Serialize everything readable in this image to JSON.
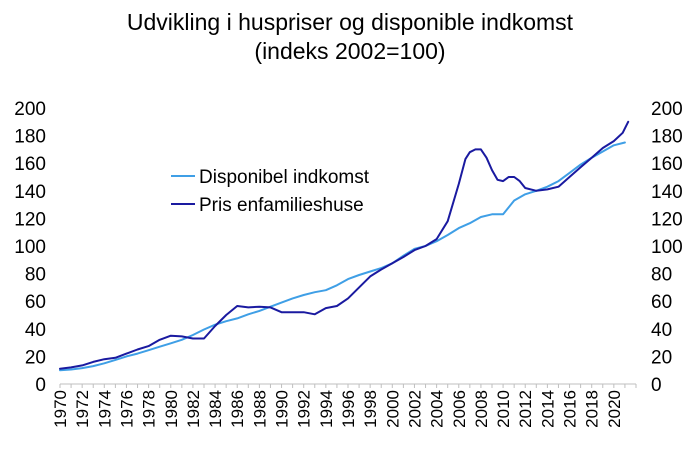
{
  "chart_data": {
    "type": "line",
    "title": "Udvikling i huspriser og disponible indkomst",
    "subtitle": "(indeks 2002=100)",
    "xlabel": "",
    "ylabel": "",
    "ylim": [
      0,
      200
    ],
    "y_ticks": [
      0,
      20,
      40,
      60,
      80,
      100,
      120,
      140,
      160,
      180,
      200
    ],
    "xlim": [
      1970,
      2021.5
    ],
    "x_ticks": [
      "1970",
      "1972",
      "1974",
      "1976",
      "1978",
      "1980",
      "1982",
      "1984",
      "1986",
      "1988",
      "1990",
      "1992",
      "1994",
      "1996",
      "1998",
      "2000",
      "2002",
      "2004",
      "2006",
      "2008",
      "2010",
      "2012",
      "2014",
      "2016",
      "2018",
      "2020"
    ],
    "grid": false,
    "secondary_y_axis": true,
    "legend_position": "inside upper-left",
    "series": [
      {
        "name": "Disponibel indkomst",
        "color": "#3f9fe6",
        "points": [
          [
            1970,
            10
          ],
          [
            1971,
            10.5
          ],
          [
            1972,
            11.5
          ],
          [
            1973,
            13
          ],
          [
            1974,
            15
          ],
          [
            1975,
            17.5
          ],
          [
            1976,
            20
          ],
          [
            1977,
            22
          ],
          [
            1978,
            24.5
          ],
          [
            1979,
            27
          ],
          [
            1980,
            29.5
          ],
          [
            1981,
            32
          ],
          [
            1982,
            35.5
          ],
          [
            1983,
            39.5
          ],
          [
            1984,
            43
          ],
          [
            1985,
            45.5
          ],
          [
            1986,
            47.5
          ],
          [
            1987,
            50.5
          ],
          [
            1988,
            53
          ],
          [
            1989,
            56
          ],
          [
            1990,
            59
          ],
          [
            1991,
            62
          ],
          [
            1992,
            64.5
          ],
          [
            1993,
            66.5
          ],
          [
            1994,
            68
          ],
          [
            1995,
            71.5
          ],
          [
            1996,
            76
          ],
          [
            1997,
            79
          ],
          [
            1998,
            81.5
          ],
          [
            1999,
            84
          ],
          [
            2000,
            87.5
          ],
          [
            2001,
            93
          ],
          [
            2002,
            98
          ],
          [
            2003,
            100
          ],
          [
            2004,
            103.5
          ],
          [
            2005,
            108
          ],
          [
            2006,
            113
          ],
          [
            2007,
            116.5
          ],
          [
            2008,
            121
          ],
          [
            2009,
            123
          ],
          [
            2010,
            123
          ],
          [
            2011,
            133
          ],
          [
            2012,
            137.5
          ],
          [
            2013,
            140
          ],
          [
            2014,
            143
          ],
          [
            2015,
            147
          ],
          [
            2016,
            153
          ],
          [
            2017,
            159
          ],
          [
            2018,
            164
          ],
          [
            2019,
            168.5
          ],
          [
            2020,
            173
          ],
          [
            2021,
            175
          ]
        ]
      },
      {
        "name": "Pris enfamilieshuse",
        "color": "#1a1aa0",
        "points": [
          [
            1970,
            11
          ],
          [
            1971,
            12
          ],
          [
            1972,
            13.5
          ],
          [
            1973,
            16
          ],
          [
            1974,
            18
          ],
          [
            1975,
            19
          ],
          [
            1976,
            22
          ],
          [
            1977,
            25
          ],
          [
            1978,
            27.5
          ],
          [
            1979,
            32
          ],
          [
            1980,
            35
          ],
          [
            1981,
            34.5
          ],
          [
            1982,
            33
          ],
          [
            1983,
            33
          ],
          [
            1984,
            42
          ],
          [
            1985,
            50
          ],
          [
            1986,
            56.5
          ],
          [
            1987,
            55.5
          ],
          [
            1988,
            56
          ],
          [
            1989,
            55.5
          ],
          [
            1990,
            52
          ],
          [
            1991,
            52
          ],
          [
            1992,
            52
          ],
          [
            1993,
            50.5
          ],
          [
            1994,
            55
          ],
          [
            1995,
            56.5
          ],
          [
            1996,
            62
          ],
          [
            1997,
            70
          ],
          [
            1998,
            78
          ],
          [
            1999,
            83
          ],
          [
            2000,
            87.5
          ],
          [
            2001,
            92
          ],
          [
            2002,
            97
          ],
          [
            2003,
            100
          ],
          [
            2004,
            105
          ],
          [
            2005,
            118
          ],
          [
            2006,
            145
          ],
          [
            2006.6,
            163
          ],
          [
            2007,
            168
          ],
          [
            2007.5,
            170
          ],
          [
            2008,
            170
          ],
          [
            2008.5,
            164
          ],
          [
            2009,
            155
          ],
          [
            2009.5,
            148
          ],
          [
            2010,
            147
          ],
          [
            2010.5,
            150
          ],
          [
            2011,
            150
          ],
          [
            2011.5,
            147
          ],
          [
            2012,
            142
          ],
          [
            2013,
            140
          ],
          [
            2014,
            141
          ],
          [
            2015,
            143
          ],
          [
            2016,
            150
          ],
          [
            2017,
            157
          ],
          [
            2018,
            164
          ],
          [
            2019,
            171
          ],
          [
            2020,
            176
          ],
          [
            2020.8,
            182
          ],
          [
            2021.3,
            190
          ]
        ]
      }
    ]
  }
}
